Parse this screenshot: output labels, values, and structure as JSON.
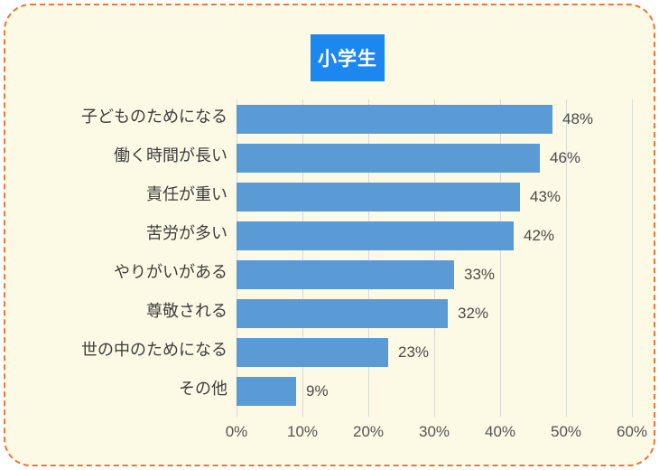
{
  "title": {
    "label": "小学生",
    "bg_color": "#1D87F0",
    "text_color": "#FFFFFF"
  },
  "card": {
    "background_color": "#FCF9E5",
    "border_color": "#E8783C"
  },
  "chart_data": {
    "type": "bar",
    "orientation": "horizontal",
    "title": "小学生",
    "categories": [
      "子どものためになる",
      "働く時間が長い",
      "責任が重い",
      "苦労が多い",
      "やりがいがある",
      "尊敬される",
      "世の中のためになる",
      "その他"
    ],
    "values": [
      48,
      46,
      43,
      42,
      33,
      32,
      23,
      9
    ],
    "value_labels": [
      "48%",
      "46%",
      "43%",
      "42%",
      "33%",
      "32%",
      "23%",
      "9%"
    ],
    "xlim": [
      0,
      60
    ],
    "tick_values": [
      0,
      10,
      20,
      30,
      40,
      50,
      60
    ],
    "tick_labels": [
      "0%",
      "10%",
      "20%",
      "30%",
      "40%",
      "50%",
      "60%"
    ],
    "grid": true,
    "legend": "none",
    "bar_color": "#5B9BD5",
    "grid_color": "#D9D9D9"
  }
}
